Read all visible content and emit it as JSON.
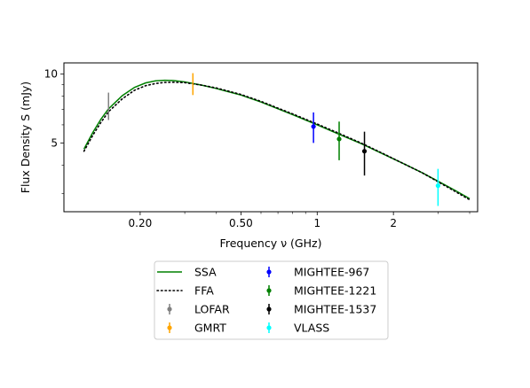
{
  "chart_data": {
    "type": "line",
    "xlabel": "Frequency ν (GHz)",
    "ylabel": "Flux Density S (mJy)",
    "xscale": "log",
    "yscale": "log",
    "xlim": [
      0.1,
      4.3
    ],
    "ylim": [
      2.5,
      11.2
    ],
    "xticks": [
      {
        "value": 0.2,
        "label": "0.20"
      },
      {
        "value": 0.5,
        "label": "0.50"
      },
      {
        "value": 1,
        "label": "1"
      },
      {
        "value": 2,
        "label": "2"
      }
    ],
    "yticks": [
      {
        "value": 5,
        "label": "5"
      },
      {
        "value": 10,
        "label": "10"
      }
    ],
    "grid": false,
    "legend_placement": "below plot, two columns",
    "series": [
      {
        "name": "SSA",
        "style": "solid",
        "color": "#008000",
        "x": [
          0.12,
          0.13,
          0.14,
          0.15,
          0.17,
          0.19,
          0.21,
          0.23,
          0.25,
          0.27,
          0.3,
          0.35,
          0.4,
          0.5,
          0.6,
          0.7,
          0.8,
          1.0,
          1.2,
          1.5,
          1.8,
          2.2,
          2.6,
          3.0,
          3.5,
          4.0
        ],
        "y": [
          4.7,
          5.55,
          6.35,
          7.05,
          8.05,
          8.75,
          9.15,
          9.35,
          9.4,
          9.38,
          9.25,
          8.95,
          8.65,
          8.1,
          7.55,
          7.05,
          6.65,
          6.0,
          5.5,
          4.95,
          4.5,
          4.05,
          3.7,
          3.4,
          3.1,
          2.85
        ]
      },
      {
        "name": "FFA",
        "style": "dotted",
        "color": "#000000",
        "x": [
          0.12,
          0.13,
          0.14,
          0.15,
          0.17,
          0.19,
          0.21,
          0.23,
          0.25,
          0.27,
          0.3,
          0.35,
          0.4,
          0.5,
          0.6,
          0.7,
          0.8,
          1.0,
          1.2,
          1.5,
          1.8,
          2.2,
          2.6,
          3.0,
          3.5,
          4.0
        ],
        "y": [
          4.6,
          5.4,
          6.15,
          6.85,
          7.8,
          8.5,
          8.9,
          9.1,
          9.2,
          9.22,
          9.18,
          8.95,
          8.7,
          8.15,
          7.6,
          7.1,
          6.7,
          6.05,
          5.55,
          4.98,
          4.52,
          4.05,
          3.7,
          3.38,
          3.07,
          2.82
        ]
      }
    ],
    "points": [
      {
        "name": "LOFAR",
        "color": "#808080",
        "x": 0.15,
        "y": 7.3,
        "err": 1.0,
        "marker": false
      },
      {
        "name": "GMRT",
        "color": "#ffa500",
        "x": 0.323,
        "y": 9.1,
        "err": 1.0,
        "marker": false
      },
      {
        "name": "MIGHTEE-967",
        "color": "#0000ff",
        "x": 0.967,
        "y": 5.9,
        "err": 0.9,
        "marker": true
      },
      {
        "name": "MIGHTEE-1221",
        "color": "#008000",
        "x": 1.221,
        "y": 5.2,
        "err": 1.0,
        "marker": true
      },
      {
        "name": "MIGHTEE-1537",
        "color": "#000000",
        "x": 1.537,
        "y": 4.6,
        "err": 1.0,
        "marker": true
      },
      {
        "name": "VLASS",
        "color": "#00ffff",
        "x": 3.0,
        "y": 3.25,
        "err": 0.6,
        "marker": true
      }
    ]
  }
}
